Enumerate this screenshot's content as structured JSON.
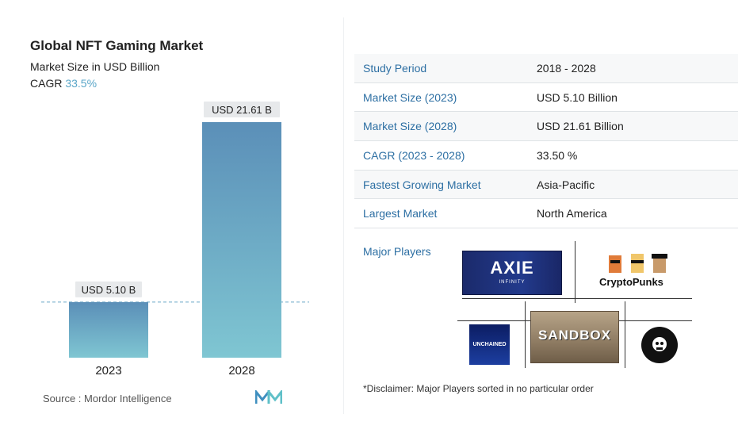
{
  "chart_data": {
    "type": "bar",
    "title": "Global NFT Gaming Market",
    "subtitle": "Market Size in USD Billion",
    "cagr_label": "CAGR",
    "cagr_value": "33.5%",
    "categories": [
      "2023",
      "2028"
    ],
    "values": [
      5.1,
      21.61
    ],
    "data_labels": [
      "USD 5.10 B",
      "USD 21.61 B"
    ],
    "ylim": [
      0,
      21.61
    ],
    "grid": false,
    "bar_color_top": "#5b8fb8",
    "bar_color_bottom": "#7fc6d2",
    "reference_line": {
      "value": 5.1,
      "style": "dashed",
      "color": "#6aa9c6"
    }
  },
  "source": "Source : Mordor Intelligence",
  "info_table": [
    {
      "label": "Study Period",
      "value": "2018 - 2028"
    },
    {
      "label": "Market Size (2023)",
      "value": "USD 5.10 Billion"
    },
    {
      "label": "Market Size (2028)",
      "value": "USD 21.61 Billion"
    },
    {
      "label": "CAGR (2023 - 2028)",
      "value": "33.50 %"
    },
    {
      "label": "Fastest Growing Market",
      "value": "Asia-Pacific"
    },
    {
      "label": "Largest Market",
      "value": "North America"
    }
  ],
  "major_players": {
    "title": "Major Players",
    "logos": {
      "axie": {
        "text": "AXIE",
        "sub": "INFINITY"
      },
      "cryptopunks": {
        "text": "CryptoPunks"
      },
      "unchained": {
        "text": "UNCHAINED"
      },
      "sandbox": {
        "text": "SANDBOX"
      },
      "bayc": {
        "icon": "ape-skull-icon"
      }
    }
  },
  "disclaimer": "*Disclaimer: Major Players sorted in no particular order",
  "colors": {
    "accent": "#2d6fa3",
    "cagr": "#5aa6c8"
  }
}
